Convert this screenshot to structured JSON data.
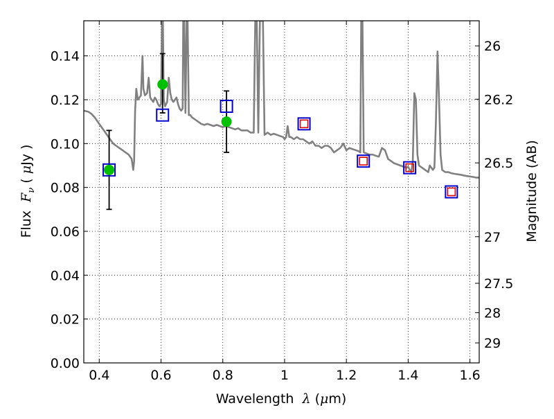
{
  "chart_data": {
    "type": "scatter",
    "title": "",
    "xlabel": {
      "prefix": "Wavelength",
      "symbol": "λ",
      "unit_open": " (",
      "unit_mu": "μ",
      "unit_rest": "m)"
    },
    "ylabel": {
      "prefix": "Flux",
      "symbol": "F",
      "subscript": "ν",
      "unit_open": " ( ",
      "unit_mu": "μ",
      "unit_rest": "Jy )"
    },
    "y2label": "Magnitude (AB)",
    "xlim": [
      0.35,
      1.63
    ],
    "ylim": [
      0.0,
      0.156
    ],
    "grid": true,
    "grid_style": "dotted",
    "x_ticks": [
      {
        "value": 0.4,
        "label": "0.4"
      },
      {
        "value": 0.6,
        "label": "0.6"
      },
      {
        "value": 0.8,
        "label": "0.8"
      },
      {
        "value": 1.0,
        "label": "1"
      },
      {
        "value": 1.2,
        "label": "1.2"
      },
      {
        "value": 1.4,
        "label": "1.4"
      },
      {
        "value": 1.6,
        "label": "1.6"
      }
    ],
    "y_ticks": [
      {
        "value": 0.0,
        "label": "0.00"
      },
      {
        "value": 0.02,
        "label": "0.02"
      },
      {
        "value": 0.04,
        "label": "0.04"
      },
      {
        "value": 0.06,
        "label": "0.06"
      },
      {
        "value": 0.08,
        "label": "0.08"
      },
      {
        "value": 0.1,
        "label": "0.10"
      },
      {
        "value": 0.12,
        "label": "0.12"
      },
      {
        "value": 0.14,
        "label": "0.14"
      }
    ],
    "y2_ticks": [
      {
        "value": 26.0,
        "label": "26"
      },
      {
        "value": 26.2,
        "label": "26.2"
      },
      {
        "value": 26.5,
        "label": "26.5"
      },
      {
        "value": 27.0,
        "label": "27"
      },
      {
        "value": 27.5,
        "label": "27.5"
      },
      {
        "value": 28.0,
        "label": "28"
      },
      {
        "value": 29.0,
        "label": "29"
      }
    ],
    "series": [
      {
        "kind": "line",
        "color": "#808080",
        "points": [
          [
            0.35,
            0.115
          ],
          [
            0.365,
            0.1145
          ],
          [
            0.375,
            0.1135
          ],
          [
            0.385,
            0.112
          ],
          [
            0.395,
            0.11
          ],
          [
            0.405,
            0.108
          ],
          [
            0.415,
            0.106
          ],
          [
            0.425,
            0.104
          ],
          [
            0.435,
            0.102
          ],
          [
            0.445,
            0.1
          ],
          [
            0.455,
            0.099
          ],
          [
            0.465,
            0.098
          ],
          [
            0.475,
            0.097
          ],
          [
            0.485,
            0.096
          ],
          [
            0.495,
            0.095
          ],
          [
            0.505,
            0.093
          ],
          [
            0.51,
            0.088
          ],
          [
            0.513,
            0.092
          ],
          [
            0.516,
            0.115
          ],
          [
            0.52,
            0.125
          ],
          [
            0.525,
            0.12
          ],
          [
            0.53,
            0.121
          ],
          [
            0.535,
            0.122
          ],
          [
            0.54,
            0.14
          ],
          [
            0.543,
            0.125
          ],
          [
            0.548,
            0.122
          ],
          [
            0.555,
            0.123
          ],
          [
            0.56,
            0.13
          ],
          [
            0.565,
            0.121
          ],
          [
            0.57,
            0.12
          ],
          [
            0.575,
            0.119
          ],
          [
            0.58,
            0.121
          ],
          [
            0.585,
            0.12
          ],
          [
            0.59,
            0.118
          ],
          [
            0.595,
            0.117
          ],
          [
            0.6,
            0.118
          ],
          [
            0.603,
            0.156
          ],
          [
            0.606,
            0.156
          ],
          [
            0.609,
            0.12
          ],
          [
            0.613,
            0.117
          ],
          [
            0.62,
            0.119
          ],
          [
            0.625,
            0.13
          ],
          [
            0.63,
            0.123
          ],
          [
            0.635,
            0.12
          ],
          [
            0.64,
            0.119
          ],
          [
            0.645,
            0.12
          ],
          [
            0.65,
            0.121
          ],
          [
            0.655,
            0.118
          ],
          [
            0.66,
            0.116
          ],
          [
            0.665,
            0.115
          ],
          [
            0.67,
            0.116
          ],
          [
            0.672,
            0.156
          ],
          [
            0.675,
            0.156
          ],
          [
            0.679,
            0.114
          ],
          [
            0.683,
            0.156
          ],
          [
            0.686,
            0.156
          ],
          [
            0.69,
            0.113
          ],
          [
            0.695,
            0.113
          ],
          [
            0.7,
            0.112
          ],
          [
            0.71,
            0.111
          ],
          [
            0.72,
            0.11
          ],
          [
            0.73,
            0.109
          ],
          [
            0.74,
            0.1085
          ],
          [
            0.75,
            0.109
          ],
          [
            0.76,
            0.1085
          ],
          [
            0.77,
            0.108
          ],
          [
            0.78,
            0.1085
          ],
          [
            0.79,
            0.108
          ],
          [
            0.8,
            0.1075
          ],
          [
            0.81,
            0.108
          ],
          [
            0.82,
            0.1075
          ],
          [
            0.83,
            0.107
          ],
          [
            0.84,
            0.1065
          ],
          [
            0.85,
            0.107
          ],
          [
            0.86,
            0.106
          ],
          [
            0.87,
            0.106
          ],
          [
            0.88,
            0.106
          ],
          [
            0.89,
            0.105
          ],
          [
            0.9,
            0.105
          ],
          [
            0.905,
            0.156
          ],
          [
            0.91,
            0.156
          ],
          [
            0.915,
            0.105
          ],
          [
            0.92,
            0.156
          ],
          [
            0.925,
            0.156
          ],
          [
            0.93,
            0.156
          ],
          [
            0.935,
            0.104
          ],
          [
            0.945,
            0.105
          ],
          [
            0.955,
            0.104
          ],
          [
            0.965,
            0.1045
          ],
          [
            0.975,
            0.104
          ],
          [
            0.985,
            0.1035
          ],
          [
            0.995,
            0.103
          ],
          [
            1.0,
            0.102
          ],
          [
            1.005,
            0.103
          ],
          [
            1.01,
            0.108
          ],
          [
            1.015,
            0.103
          ],
          [
            1.02,
            0.103
          ],
          [
            1.03,
            0.102
          ],
          [
            1.04,
            0.103
          ],
          [
            1.05,
            0.102
          ],
          [
            1.06,
            0.102
          ],
          [
            1.07,
            0.101
          ],
          [
            1.08,
            0.1
          ],
          [
            1.09,
            0.101
          ],
          [
            1.1,
            0.099
          ],
          [
            1.11,
            0.099
          ],
          [
            1.12,
            0.098
          ],
          [
            1.13,
            0.099
          ],
          [
            1.14,
            0.099
          ],
          [
            1.15,
            0.098
          ],
          [
            1.16,
            0.096
          ],
          [
            1.17,
            0.097
          ],
          [
            1.18,
            0.098
          ],
          [
            1.19,
            0.1
          ],
          [
            1.2,
            0.097
          ],
          [
            1.21,
            0.098
          ],
          [
            1.22,
            0.0975
          ],
          [
            1.23,
            0.097
          ],
          [
            1.24,
            0.0965
          ],
          [
            1.245,
            0.096
          ],
          [
            1.248,
            0.156
          ],
          [
            1.252,
            0.156
          ],
          [
            1.256,
            0.096
          ],
          [
            1.265,
            0.0955
          ],
          [
            1.275,
            0.095
          ],
          [
            1.285,
            0.095
          ],
          [
            1.295,
            0.0945
          ],
          [
            1.305,
            0.094
          ],
          [
            1.315,
            0.098
          ],
          [
            1.325,
            0.097
          ],
          [
            1.335,
            0.093
          ],
          [
            1.345,
            0.092
          ],
          [
            1.355,
            0.091
          ],
          [
            1.365,
            0.0905
          ],
          [
            1.375,
            0.09
          ],
          [
            1.385,
            0.0895
          ],
          [
            1.395,
            0.089
          ],
          [
            1.4,
            0.0895
          ],
          [
            1.405,
            0.088
          ],
          [
            1.41,
            0.087
          ],
          [
            1.415,
            0.092
          ],
          [
            1.42,
            0.123
          ],
          [
            1.425,
            0.12
          ],
          [
            1.43,
            0.095
          ],
          [
            1.435,
            0.09
          ],
          [
            1.445,
            0.089
          ],
          [
            1.455,
            0.088
          ],
          [
            1.465,
            0.087
          ],
          [
            1.47,
            0.09
          ],
          [
            1.475,
            0.089
          ],
          [
            1.48,
            0.088
          ],
          [
            1.485,
            0.089
          ],
          [
            1.49,
            0.11
          ],
          [
            1.495,
            0.142
          ],
          [
            1.5,
            0.12
          ],
          [
            1.505,
            0.095
          ],
          [
            1.51,
            0.088
          ],
          [
            1.52,
            0.087
          ],
          [
            1.53,
            0.087
          ],
          [
            1.54,
            0.0865
          ],
          [
            1.55,
            0.0862
          ],
          [
            1.56,
            0.086
          ],
          [
            1.57,
            0.0858
          ],
          [
            1.58,
            0.0855
          ],
          [
            1.59,
            0.0852
          ],
          [
            1.6,
            0.085
          ],
          [
            1.61,
            0.0848
          ],
          [
            1.62,
            0.0845
          ],
          [
            1.63,
            0.0845
          ]
        ]
      },
      {
        "kind": "errorbar-points",
        "marker": "circle",
        "color": "#00c000",
        "errorbar_color": "#000000",
        "points": [
          {
            "x": 0.432,
            "y": 0.088,
            "ylow": 0.07,
            "yhigh": 0.106
          },
          {
            "x": 0.605,
            "y": 0.127,
            "ylow": 0.114,
            "yhigh": 0.141
          },
          {
            "x": 0.812,
            "y": 0.11,
            "ylow": 0.096,
            "yhigh": 0.124
          }
        ]
      },
      {
        "kind": "points",
        "marker": "open-square",
        "color": "#0000cc",
        "points": [
          [
            0.432,
            0.088
          ],
          [
            0.605,
            0.113
          ],
          [
            0.812,
            0.117
          ],
          [
            1.063,
            0.109
          ],
          [
            1.255,
            0.092
          ],
          [
            1.405,
            0.089
          ],
          [
            1.54,
            0.078
          ]
        ]
      },
      {
        "kind": "points",
        "marker": "small-open-square",
        "color": "#dd0000",
        "points": [
          [
            1.063,
            0.109
          ],
          [
            1.255,
            0.092
          ],
          [
            1.405,
            0.089
          ],
          [
            1.54,
            0.078
          ]
        ]
      }
    ]
  }
}
